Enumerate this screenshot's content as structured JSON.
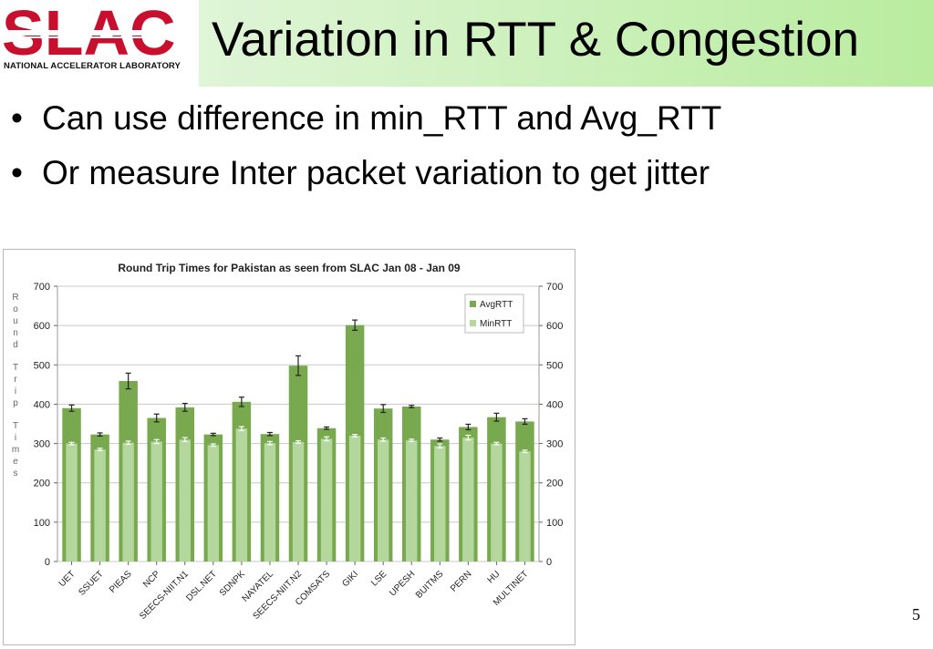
{
  "logo": {
    "text": "SLAC",
    "subtitle": "NATIONAL ACCELERATOR LABORATORY"
  },
  "slide": {
    "title": "Variation in RTT & Congestion",
    "bullets": [
      "Can use difference in min_RTT and Avg_RTT",
      "Or measure Inter packet variation to get jitter"
    ],
    "bullet_symbol": "•",
    "page_number": "5"
  },
  "colors": {
    "avg": "#79a94e",
    "min": "#b3d79d",
    "logo_red": "#c8102e",
    "title_bg_end": "#b9ec9f"
  },
  "chart_data": {
    "type": "bar",
    "title": "Round Trip Times for Pakistan as seen from SLAC Jan 08 - Jan 09",
    "ylabel": "Round Trip Times",
    "ylim": [
      0,
      700
    ],
    "yticks": [
      0,
      100,
      200,
      300,
      400,
      500,
      600,
      700
    ],
    "legend_position": "top-right",
    "grid": true,
    "categories": [
      "UET",
      "SSUET",
      "PIEAS",
      "NCP",
      "SEECS-NIIT.N1",
      "DSL.NET",
      "SDNPK",
      "NAYATEL",
      "SEECS-NIIT.N2",
      "COMSATS",
      "GIKI",
      "LSE",
      "UPESH",
      "BUITMS",
      "PERN",
      "HU",
      "MULTINET"
    ],
    "series": [
      {
        "name": "AvgRTT",
        "values": [
          390,
          323,
          459,
          365,
          392,
          323,
          406,
          324,
          498,
          339,
          601,
          389,
          394,
          310,
          342,
          367,
          356
        ],
        "errors": [
          8,
          4,
          20,
          10,
          10,
          3,
          12,
          4,
          25,
          3,
          13,
          10,
          3,
          4,
          7,
          10,
          7
        ]
      },
      {
        "name": "MinRTT",
        "values": [
          300,
          285,
          302,
          305,
          310,
          296,
          338,
          301,
          304,
          312,
          320,
          310,
          308,
          294,
          315,
          300,
          280
        ],
        "errors": [
          3,
          3,
          4,
          5,
          5,
          3,
          5,
          4,
          3,
          5,
          3,
          4,
          3,
          5,
          6,
          3,
          3
        ]
      }
    ]
  }
}
